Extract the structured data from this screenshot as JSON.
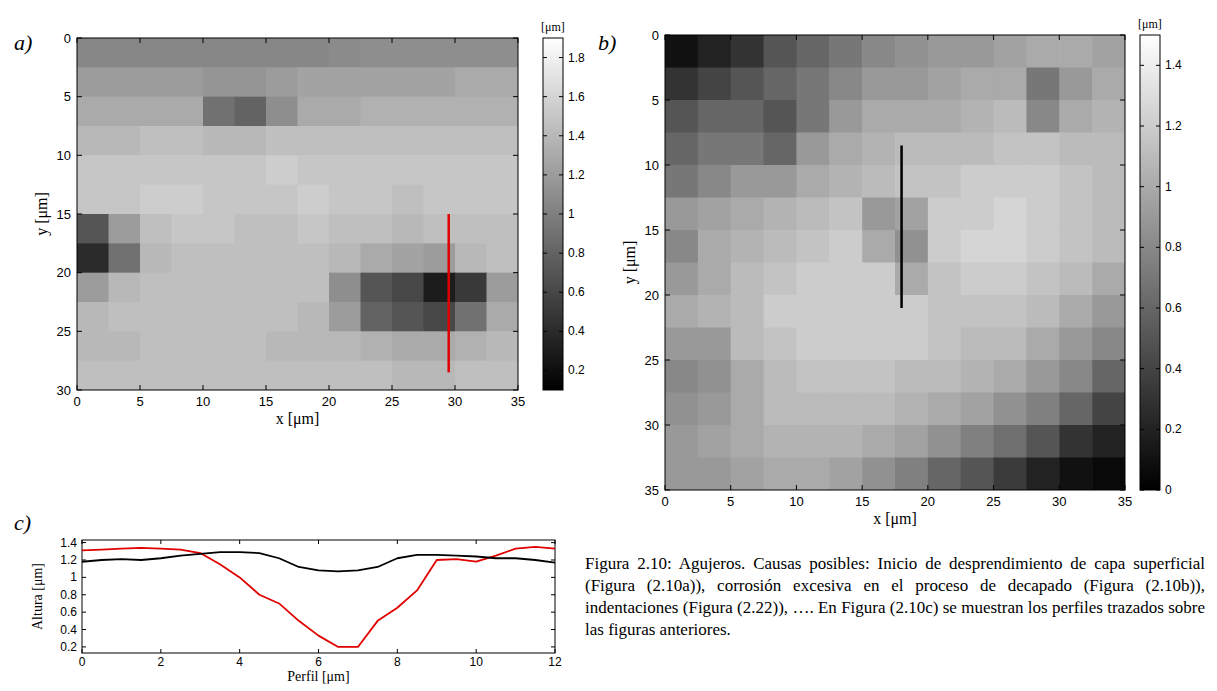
{
  "chart_data": [
    {
      "type": "heatmap",
      "label": "a)",
      "x_label": "x [μm]",
      "y_label": "y [μm]",
      "xlim": [
        0,
        35
      ],
      "ylim": [
        0,
        30
      ],
      "xticks": [
        0,
        5,
        10,
        15,
        20,
        25,
        30,
        35
      ],
      "yticks": [
        0,
        5,
        10,
        15,
        20,
        25,
        30
      ],
      "cells": [
        [
          1.05,
          1.05,
          1.05,
          1.05,
          1.05,
          1.05,
          1.05,
          1.05,
          1.08,
          1.1,
          1.1,
          1.1,
          1.1,
          1.1
        ],
        [
          1.2,
          1.2,
          1.2,
          1.2,
          1.15,
          1.15,
          1.2,
          1.25,
          1.25,
          1.25,
          1.25,
          1.25,
          1.3,
          1.3
        ],
        [
          1.3,
          1.3,
          1.3,
          1.3,
          0.9,
          0.8,
          1.1,
          1.3,
          1.3,
          1.35,
          1.35,
          1.35,
          1.35,
          1.35
        ],
        [
          1.4,
          1.4,
          1.45,
          1.45,
          1.4,
          1.4,
          1.45,
          1.45,
          1.45,
          1.45,
          1.45,
          1.45,
          1.45,
          1.45
        ],
        [
          1.5,
          1.5,
          1.5,
          1.5,
          1.5,
          1.5,
          1.55,
          1.5,
          1.5,
          1.5,
          1.5,
          1.5,
          1.5,
          1.5
        ],
        [
          1.5,
          1.5,
          1.55,
          1.55,
          1.5,
          1.5,
          1.5,
          1.55,
          1.5,
          1.5,
          1.45,
          1.5,
          1.5,
          1.5
        ],
        [
          0.7,
          1.2,
          1.45,
          1.5,
          1.5,
          1.45,
          1.45,
          1.5,
          1.45,
          1.45,
          1.4,
          1.45,
          1.45,
          1.45
        ],
        [
          0.4,
          0.9,
          1.4,
          1.45,
          1.45,
          1.45,
          1.45,
          1.45,
          1.4,
          1.3,
          1.25,
          1.2,
          1.4,
          1.45
        ],
        [
          1.2,
          1.4,
          1.45,
          1.45,
          1.45,
          1.45,
          1.45,
          1.45,
          1.1,
          0.7,
          0.6,
          0.3,
          0.5,
          1.2
        ],
        [
          1.4,
          1.45,
          1.45,
          1.45,
          1.45,
          1.45,
          1.45,
          1.4,
          1.2,
          0.8,
          0.7,
          0.6,
          0.9,
          1.3
        ],
        [
          1.4,
          1.4,
          1.45,
          1.45,
          1.45,
          1.45,
          1.4,
          1.4,
          1.4,
          1.35,
          1.3,
          1.3,
          1.35,
          1.4
        ],
        [
          1.45,
          1.45,
          1.45,
          1.45,
          1.45,
          1.45,
          1.45,
          1.45,
          1.45,
          1.45,
          1.4,
          1.4,
          1.45,
          1.45
        ]
      ],
      "colorbar": {
        "label": "[μm]",
        "range": [
          0.1,
          1.9
        ],
        "ticks": [
          0.2,
          0.4,
          0.6,
          0.8,
          1,
          1.2,
          1.4,
          1.6,
          1.8
        ]
      },
      "profile": {
        "color": "#e00000",
        "x": [
          29.5,
          29.5
        ],
        "y": [
          15,
          28.5
        ]
      }
    },
    {
      "type": "heatmap",
      "label": "b)",
      "x_label": "x [μm]",
      "y_label": "y [μm]",
      "xlim": [
        0,
        35
      ],
      "ylim": [
        0,
        35
      ],
      "xticks": [
        0,
        5,
        10,
        15,
        20,
        25,
        30,
        35
      ],
      "yticks": [
        0,
        5,
        10,
        15,
        20,
        25,
        30,
        35
      ],
      "cells": [
        [
          0.1,
          0.2,
          0.3,
          0.5,
          0.6,
          0.7,
          0.8,
          0.85,
          0.9,
          0.9,
          0.95,
          1.0,
          1.0,
          0.95
        ],
        [
          0.3,
          0.4,
          0.5,
          0.6,
          0.7,
          0.8,
          0.9,
          0.9,
          0.95,
          1.0,
          1.0,
          0.7,
          0.9,
          1.0
        ],
        [
          0.5,
          0.6,
          0.6,
          0.5,
          0.7,
          0.9,
          1.0,
          1.0,
          1.0,
          1.05,
          1.1,
          0.8,
          1.0,
          1.05
        ],
        [
          0.6,
          0.7,
          0.7,
          0.6,
          0.9,
          1.0,
          1.05,
          1.1,
          1.1,
          1.1,
          1.15,
          1.15,
          1.1,
          1.1
        ],
        [
          0.7,
          0.8,
          0.9,
          0.9,
          1.0,
          1.05,
          1.1,
          1.15,
          1.15,
          1.2,
          1.2,
          1.2,
          1.15,
          1.1
        ],
        [
          0.9,
          0.95,
          1.0,
          1.05,
          1.1,
          1.15,
          0.9,
          0.95,
          1.2,
          1.2,
          1.25,
          1.2,
          1.15,
          1.1
        ],
        [
          0.8,
          1.0,
          1.05,
          1.1,
          1.15,
          1.2,
          1.0,
          0.85,
          1.2,
          1.25,
          1.25,
          1.2,
          1.15,
          1.1
        ],
        [
          0.9,
          1.0,
          1.1,
          1.15,
          1.2,
          1.2,
          1.2,
          1.0,
          1.15,
          1.2,
          1.2,
          1.15,
          1.1,
          1.0
        ],
        [
          1.0,
          1.05,
          1.1,
          1.2,
          1.2,
          1.2,
          1.2,
          1.2,
          1.15,
          1.15,
          1.15,
          1.1,
          1.0,
          0.9
        ],
        [
          0.9,
          0.9,
          1.1,
          1.15,
          1.2,
          1.2,
          1.2,
          1.2,
          1.15,
          1.1,
          1.1,
          1.0,
          0.9,
          0.8
        ],
        [
          0.8,
          0.85,
          1.0,
          1.1,
          1.15,
          1.15,
          1.15,
          1.1,
          1.1,
          1.05,
          1.0,
          0.9,
          0.8,
          0.6
        ],
        [
          0.85,
          0.9,
          1.0,
          1.1,
          1.1,
          1.1,
          1.1,
          1.05,
          1.0,
          0.95,
          0.85,
          0.75,
          0.6,
          0.4
        ],
        [
          0.9,
          0.95,
          1.0,
          1.05,
          1.05,
          1.05,
          1.0,
          0.95,
          0.85,
          0.75,
          0.65,
          0.5,
          0.3,
          0.2
        ],
        [
          0.9,
          0.9,
          0.95,
          1.0,
          1.0,
          0.95,
          0.85,
          0.75,
          0.6,
          0.5,
          0.35,
          0.2,
          0.1,
          0.05
        ]
      ],
      "colorbar": {
        "label": "[μm]",
        "range": [
          0,
          1.5
        ],
        "ticks": [
          0,
          0.2,
          0.4,
          0.6,
          0.8,
          1,
          1.2,
          1.4
        ]
      },
      "profile": {
        "color": "#000000",
        "x": [
          18,
          18
        ],
        "y": [
          8.5,
          21
        ]
      }
    },
    {
      "type": "line",
      "label": "c)",
      "x_label": "Perfil [μm]",
      "y_label": "Altura [μm]",
      "x": [
        0,
        0.5,
        1,
        1.5,
        2,
        2.5,
        3,
        3.5,
        4,
        4.5,
        5,
        5.5,
        6,
        6.5,
        7,
        7.5,
        8,
        8.5,
        9,
        9.5,
        10,
        10.5,
        11,
        11.5,
        12
      ],
      "series": [
        {
          "color": "#e00000",
          "values": [
            1.31,
            1.32,
            1.33,
            1.34,
            1.33,
            1.32,
            1.28,
            1.15,
            1.0,
            0.8,
            0.7,
            0.5,
            0.33,
            0.2,
            0.2,
            0.5,
            0.65,
            0.85,
            1.2,
            1.21,
            1.18,
            1.25,
            1.33,
            1.35,
            1.33
          ]
        },
        {
          "color": "#000000",
          "values": [
            1.18,
            1.2,
            1.21,
            1.2,
            1.22,
            1.25,
            1.27,
            1.29,
            1.29,
            1.28,
            1.22,
            1.12,
            1.08,
            1.07,
            1.08,
            1.12,
            1.22,
            1.26,
            1.26,
            1.25,
            1.24,
            1.22,
            1.22,
            1.2,
            1.17
          ]
        }
      ],
      "xlim": [
        0,
        12
      ],
      "ylim": [
        0.13,
        1.43
      ],
      "xticks": [
        0,
        2,
        4,
        6,
        8,
        10,
        12
      ],
      "yticks": [
        0.2,
        0.4,
        0.6,
        0.8,
        1,
        1.2,
        1.4
      ]
    }
  ],
  "caption": "Figura 2.10: Agujeros. Causas posibles: Inicio de desprendimiento de capa superficial (Figura (2.10a)), corrosión excesiva en el proceso de decapado (Figura (2.10b)), indentaciones (Figura (2.22)), …. En Figura (2.10c) se muestran los perfiles trazados sobre las figuras anteriores."
}
